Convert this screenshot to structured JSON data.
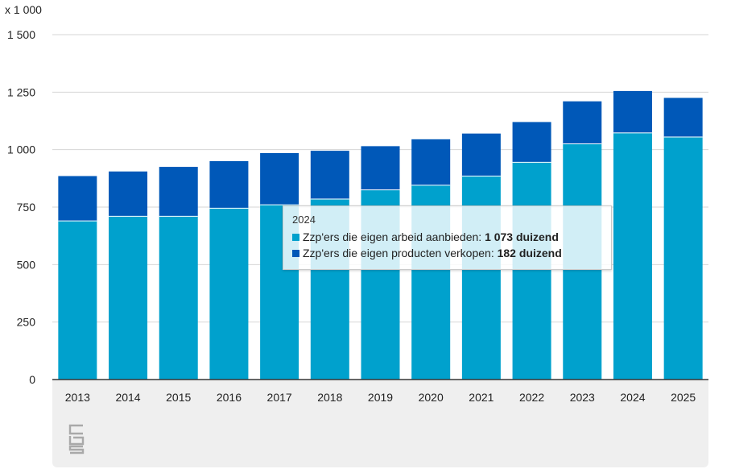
{
  "chart_data": {
    "type": "bar",
    "stacked": true,
    "unit_label": "x 1 000",
    "categories": [
      "2013",
      "2014",
      "2015",
      "2016",
      "2017",
      "2018",
      "2019",
      "2020",
      "2021",
      "2022",
      "2023",
      "2024",
      "2025"
    ],
    "series": [
      {
        "name": "Zzp'ers die eigen arbeid aanbieden",
        "color": "#00a1cd",
        "values": [
          690,
          710,
          710,
          745,
          760,
          785,
          825,
          845,
          885,
          945,
          1025,
          1073,
          1055
        ]
      },
      {
        "name": "Zzp'ers die eigen producten verkopen",
        "color": "#0058b8",
        "values": [
          195,
          195,
          215,
          205,
          225,
          210,
          190,
          200,
          185,
          175,
          185,
          182,
          170
        ]
      }
    ],
    "ylim": [
      0,
      1500
    ],
    "yticks": [
      0,
      250,
      500,
      750,
      1000,
      1250,
      1500
    ],
    "ytick_labels": [
      "0",
      "250",
      "500",
      "750",
      "1 000",
      "1 250",
      "1 500"
    ],
    "grid": true,
    "tooltip": {
      "title": "2024",
      "rows": [
        {
          "label": "Zzp'ers die eigen arbeid aanbieden:",
          "value": "1 073 duizend"
        },
        {
          "label": "Zzp'ers die eigen producten verkopen:",
          "value": "182 duizend"
        }
      ]
    }
  },
  "logo_text": "cbs"
}
